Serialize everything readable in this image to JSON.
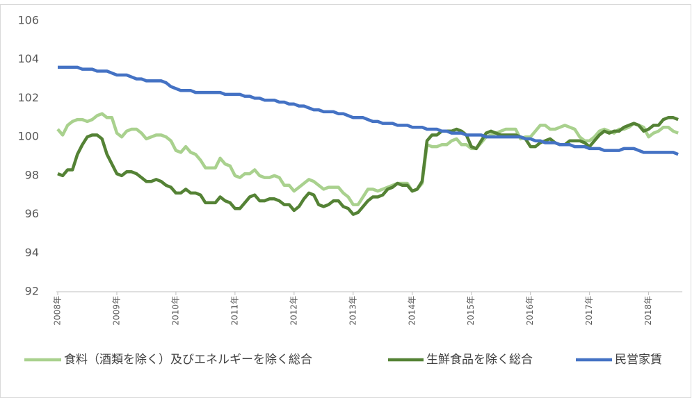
{
  "chart_data": {
    "type": "line",
    "categories": [
      "2008年",
      null,
      null,
      null,
      null,
      null,
      null,
      null,
      null,
      null,
      null,
      null,
      "2009年",
      null,
      null,
      null,
      null,
      null,
      null,
      null,
      null,
      null,
      null,
      null,
      "2010年",
      null,
      null,
      null,
      null,
      null,
      null,
      null,
      null,
      null,
      null,
      null,
      "2011年",
      null,
      null,
      null,
      null,
      null,
      null,
      null,
      null,
      null,
      null,
      null,
      "2012年",
      null,
      null,
      null,
      null,
      null,
      null,
      null,
      null,
      null,
      null,
      null,
      "2013年",
      null,
      null,
      null,
      null,
      null,
      null,
      null,
      null,
      null,
      null,
      null,
      "2014年",
      null,
      null,
      null,
      null,
      null,
      null,
      null,
      null,
      null,
      null,
      null,
      "2015年",
      null,
      null,
      null,
      null,
      null,
      null,
      null,
      null,
      null,
      null,
      null,
      "2016年",
      null,
      null,
      null,
      null,
      null,
      null,
      null,
      null,
      null,
      null,
      null,
      "2017年",
      null,
      null,
      null,
      null,
      null,
      null,
      null,
      null,
      null,
      null,
      null,
      "2018年",
      null,
      null,
      null,
      null,
      null,
      null
    ],
    "series": [
      {
        "name": "食料（酒類を除く）及びエネルギーを除く総合",
        "color": "#a9d18e",
        "values": [
          100.4,
          100.1,
          100.6,
          100.8,
          100.9,
          100.9,
          100.8,
          100.9,
          101.1,
          101.2,
          101.0,
          101.0,
          100.2,
          100.0,
          100.3,
          100.4,
          100.4,
          100.2,
          99.9,
          100.0,
          100.1,
          100.1,
          100.0,
          99.8,
          99.3,
          99.2,
          99.5,
          99.2,
          99.1,
          98.8,
          98.4,
          98.4,
          98.4,
          98.9,
          98.6,
          98.5,
          98.0,
          97.9,
          98.1,
          98.1,
          98.3,
          98.0,
          97.9,
          97.9,
          98.0,
          97.9,
          97.5,
          97.5,
          97.2,
          97.4,
          97.6,
          97.8,
          97.7,
          97.5,
          97.3,
          97.4,
          97.4,
          97.4,
          97.1,
          96.9,
          96.5,
          96.5,
          96.9,
          97.3,
          97.3,
          97.2,
          97.3,
          97.4,
          97.5,
          97.6,
          97.6,
          97.6,
          97.2,
          97.3,
          97.6,
          99.6,
          99.5,
          99.5,
          99.6,
          99.6,
          99.8,
          99.9,
          99.6,
          99.6,
          99.4,
          99.4,
          99.7,
          100.0,
          100.1,
          100.2,
          100.3,
          100.4,
          100.4,
          100.4,
          99.9,
          100.0,
          100.0,
          100.3,
          100.6,
          100.6,
          100.4,
          100.4,
          100.5,
          100.6,
          100.5,
          100.4,
          100.0,
          99.8,
          99.8,
          100.0,
          100.3,
          100.4,
          100.3,
          100.2,
          100.4,
          100.4,
          100.5,
          100.7,
          100.6,
          100.5,
          100.0,
          100.2,
          100.3,
          100.5,
          100.5,
          100.3,
          100.2
        ]
      },
      {
        "name": "生鮮食品を除く総合",
        "color": "#548235",
        "values": [
          98.1,
          98.0,
          98.3,
          98.3,
          99.1,
          99.6,
          100.0,
          100.1,
          100.1,
          99.9,
          99.1,
          98.6,
          98.1,
          98.0,
          98.2,
          98.2,
          98.1,
          97.9,
          97.7,
          97.7,
          97.8,
          97.7,
          97.5,
          97.4,
          97.1,
          97.1,
          97.3,
          97.1,
          97.1,
          97.0,
          96.6,
          96.6,
          96.6,
          96.9,
          96.7,
          96.6,
          96.3,
          96.3,
          96.6,
          96.9,
          97.0,
          96.7,
          96.7,
          96.8,
          96.8,
          96.7,
          96.5,
          96.5,
          96.2,
          96.4,
          96.8,
          97.1,
          97.0,
          96.5,
          96.4,
          96.5,
          96.7,
          96.7,
          96.4,
          96.3,
          96.0,
          96.1,
          96.4,
          96.7,
          96.9,
          96.9,
          97.0,
          97.3,
          97.4,
          97.6,
          97.5,
          97.5,
          97.2,
          97.3,
          97.7,
          99.8,
          100.1,
          100.1,
          100.3,
          100.3,
          100.3,
          100.4,
          100.3,
          100.1,
          99.5,
          99.4,
          99.8,
          100.2,
          100.3,
          100.2,
          100.1,
          100.1,
          100.1,
          100.1,
          100.0,
          99.9,
          99.5,
          99.5,
          99.7,
          99.8,
          99.9,
          99.7,
          99.6,
          99.6,
          99.8,
          99.8,
          99.8,
          99.7,
          99.5,
          99.8,
          100.1,
          100.3,
          100.2,
          100.3,
          100.3,
          100.5,
          100.6,
          100.7,
          100.6,
          100.3,
          100.4,
          100.6,
          100.6,
          100.9,
          101.0,
          101.0,
          100.9
        ]
      },
      {
        "name": "民営家賃",
        "color": "#4472c4",
        "values": [
          103.6,
          103.6,
          103.6,
          103.6,
          103.6,
          103.5,
          103.5,
          103.5,
          103.4,
          103.4,
          103.4,
          103.3,
          103.2,
          103.2,
          103.2,
          103.1,
          103.0,
          103.0,
          102.9,
          102.9,
          102.9,
          102.9,
          102.8,
          102.6,
          102.5,
          102.4,
          102.4,
          102.4,
          102.3,
          102.3,
          102.3,
          102.3,
          102.3,
          102.3,
          102.2,
          102.2,
          102.2,
          102.2,
          102.1,
          102.1,
          102.0,
          102.0,
          101.9,
          101.9,
          101.9,
          101.8,
          101.8,
          101.7,
          101.7,
          101.6,
          101.6,
          101.5,
          101.4,
          101.4,
          101.3,
          101.3,
          101.3,
          101.2,
          101.2,
          101.1,
          101.0,
          101.0,
          101.0,
          100.9,
          100.8,
          100.8,
          100.7,
          100.7,
          100.7,
          100.6,
          100.6,
          100.6,
          100.5,
          100.5,
          100.5,
          100.4,
          100.4,
          100.4,
          100.3,
          100.3,
          100.2,
          100.2,
          100.2,
          100.1,
          100.1,
          100.1,
          100.1,
          100.0,
          100.0,
          100.0,
          100.0,
          100.0,
          100.0,
          100.0,
          100.0,
          99.9,
          99.9,
          99.8,
          99.8,
          99.7,
          99.7,
          99.7,
          99.6,
          99.6,
          99.6,
          99.5,
          99.5,
          99.5,
          99.4,
          99.4,
          99.4,
          99.3,
          99.3,
          99.3,
          99.3,
          99.4,
          99.4,
          99.4,
          99.3,
          99.2,
          99.2,
          99.2,
          99.2,
          99.2,
          99.2,
          99.2,
          99.1
        ]
      }
    ],
    "ylim": [
      92,
      106
    ],
    "yticks": [
      92,
      94,
      96,
      98,
      100,
      102,
      104,
      106
    ],
    "legend": "bottom"
  }
}
